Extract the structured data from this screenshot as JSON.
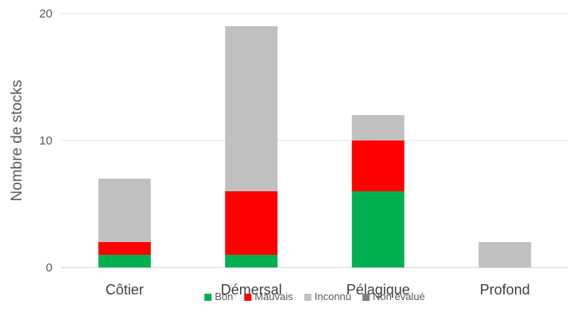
{
  "chart_data": {
    "type": "bar",
    "stacked": true,
    "title": "",
    "xlabel": "",
    "ylabel": "Nombre de stocks",
    "ylim": [
      0,
      20
    ],
    "yticks": [
      0,
      10,
      20
    ],
    "grid": true,
    "legend_position": "bottom",
    "categories": [
      "Côtier",
      "Démersal",
      "Pélagique",
      "Profond"
    ],
    "series": [
      {
        "name": "Bon",
        "color": "#00b050",
        "values": [
          1,
          1,
          6,
          0
        ]
      },
      {
        "name": "Mauvais",
        "color": "#ff0000",
        "values": [
          1,
          5,
          4,
          0
        ]
      },
      {
        "name": "Inconnu",
        "color": "#c0c0c0",
        "values": [
          5,
          13,
          2,
          2
        ]
      },
      {
        "name": "Non évalué",
        "color": "#7f7f7f",
        "values": [
          0,
          0,
          0,
          0
        ]
      }
    ]
  }
}
